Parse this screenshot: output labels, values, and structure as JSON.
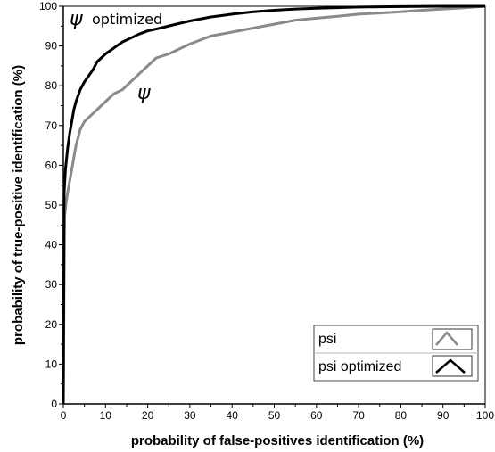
{
  "chart_data": {
    "type": "line",
    "xlabel": "probability of false-positives identification (%)",
    "ylabel": "probability of true-positive identification (%)",
    "xlim": [
      0,
      100
    ],
    "ylim": [
      0,
      100
    ],
    "xticks": [
      0,
      10,
      20,
      30,
      40,
      50,
      60,
      70,
      80,
      90,
      100
    ],
    "yticks": [
      0,
      10,
      20,
      30,
      40,
      50,
      60,
      70,
      80,
      90,
      100
    ],
    "grid": false,
    "legend_position": "bottom-right",
    "annotations": [
      {
        "symbol": "ψ",
        "text": "optimized",
        "series": "psi optimized"
      },
      {
        "symbol": "ψ",
        "text": "",
        "series": "psi"
      }
    ],
    "series": [
      {
        "name": "psi",
        "color": "#8a8a8a",
        "x": [
          0,
          0.3,
          0.6,
          1,
          1.5,
          2,
          2.5,
          3,
          3.5,
          4,
          5,
          6,
          7,
          8,
          9,
          10,
          12,
          14,
          16,
          18,
          20,
          22,
          25,
          28,
          30,
          35,
          40,
          45,
          50,
          55,
          60,
          65,
          70,
          75,
          80,
          85,
          90,
          95,
          100
        ],
        "y": [
          0,
          47,
          50,
          53,
          56,
          59,
          62,
          65,
          67,
          69,
          71,
          72,
          73,
          74,
          75,
          76,
          78,
          79,
          81,
          83,
          85,
          87,
          88,
          89.5,
          90.5,
          92.5,
          93.5,
          94.5,
          95.5,
          96.5,
          97,
          97.5,
          98,
          98.3,
          98.6,
          99,
          99.3,
          99.6,
          100
        ]
      },
      {
        "name": "psi optimized",
        "color": "#000000",
        "x": [
          0,
          0.2,
          0.5,
          1,
          1.5,
          2,
          2.5,
          3,
          4,
          5,
          6,
          7,
          8,
          10,
          12,
          14,
          16,
          18,
          20,
          23,
          26,
          30,
          35,
          40,
          45,
          50,
          55,
          60,
          70,
          80,
          90,
          100
        ],
        "y": [
          0,
          53,
          59,
          64,
          68,
          71,
          74,
          76,
          79,
          81,
          82.5,
          84,
          86,
          88,
          89.5,
          91,
          92,
          93,
          93.8,
          94.5,
          95.3,
          96.3,
          97.3,
          98,
          98.6,
          99,
          99.3,
          99.5,
          99.8,
          99.9,
          100,
          100
        ]
      }
    ]
  }
}
